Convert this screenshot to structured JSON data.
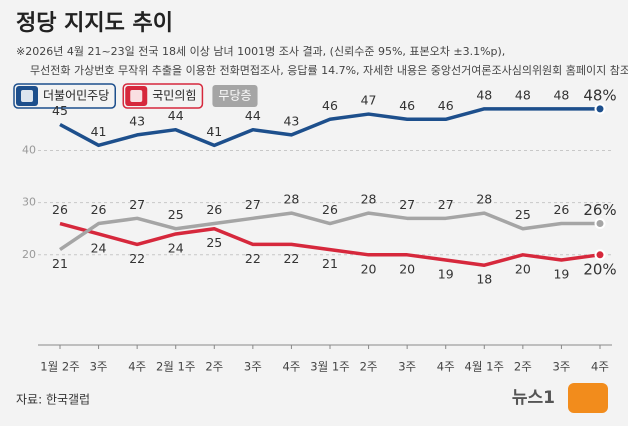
{
  "chart_data": {
    "type": "line",
    "title": "정당 지지도 추이",
    "subtitle": [
      "※2026년 4월 21~23일 전국 18세 이상 남녀 1001명 조사 결과, (신뢰수준 95%, 표본오차 ±3.1%p),",
      "무선전화 가상번호 무작위 추출을 이용한 전화면접조사, 응답률 14.7%, 자세한 내용은 중앙선거여론조사심의위원회 홈페이지 참조"
    ],
    "categories": [
      "1월 2주",
      "3주",
      "4주",
      "2월 1주",
      "2주",
      "3주",
      "4주",
      "3월 1주",
      "2주",
      "3주",
      "4주",
      "4월 1주",
      "2주",
      "3주",
      "4주"
    ],
    "series": [
      {
        "name": "더불어민주당",
        "color": "#1d4f8c",
        "values": [
          45,
          41,
          43,
          44,
          41,
          44,
          43,
          46,
          47,
          46,
          46,
          48,
          48,
          48,
          48
        ],
        "value_labels": [
          "45",
          "41",
          "43",
          "44",
          "41",
          "44",
          "43",
          "46",
          "47",
          "46",
          "46",
          "48",
          "48",
          "48",
          "48%"
        ]
      },
      {
        "name": "국민의힘",
        "color": "#d6283c",
        "values": [
          26,
          24,
          22,
          24,
          25,
          22,
          22,
          21,
          20,
          20,
          19,
          18,
          20,
          19,
          20
        ],
        "value_labels": [
          "26",
          "24",
          "22",
          "24",
          "25",
          "22",
          "22",
          "21",
          "20",
          "20",
          "19",
          "18",
          "20",
          "19",
          "20%"
        ]
      },
      {
        "name": "무당층",
        "color": "#a5a5a5",
        "values": [
          21,
          26,
          27,
          25,
          26,
          27,
          28,
          26,
          28,
          27,
          27,
          28,
          25,
          26,
          26
        ],
        "value_labels": [
          "21",
          "26",
          "27",
          "25",
          "26",
          "27",
          "28",
          "26",
          "28",
          "27",
          "27",
          "28",
          "25",
          "26",
          "26%"
        ]
      }
    ],
    "ylim": [
      5,
      52
    ],
    "yticks": [
      20,
      30,
      40
    ],
    "grid": true,
    "source": "자료: 한국갤럽",
    "logo": "뉴스1"
  }
}
